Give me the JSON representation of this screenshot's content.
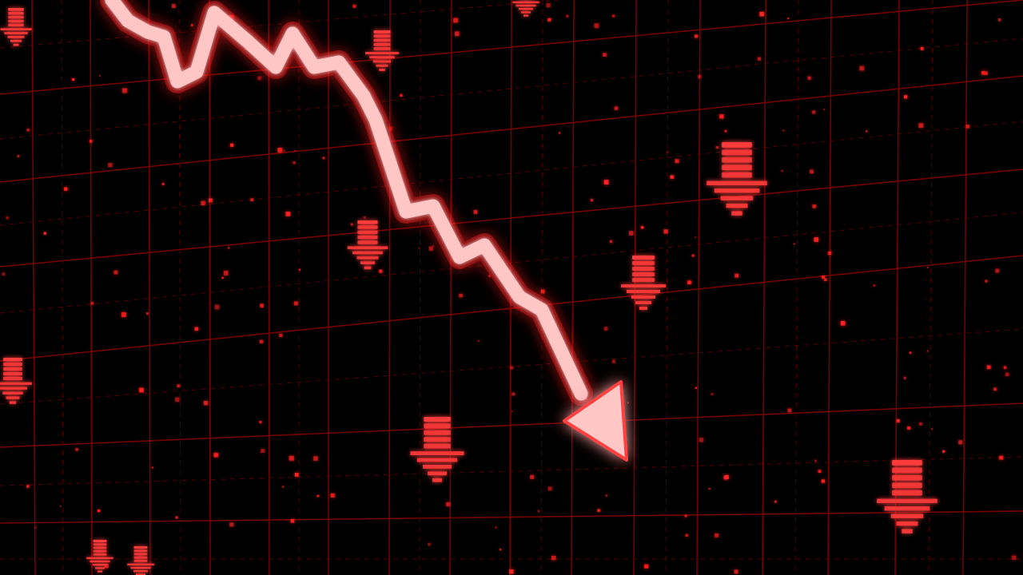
{
  "palette": {
    "background": "#000000",
    "grid_line": "#8a0000",
    "grid_dash": "#5a0000",
    "particle": "#ff2020",
    "arrow_icon": "#ff3a3a",
    "trend_glow": "#ff1a1a",
    "trend_core": "#ffd0d0"
  },
  "scene": {
    "subject": "downward-trend-arrow",
    "trend_direction": "down",
    "icon_name": "down-arrow-icon"
  }
}
